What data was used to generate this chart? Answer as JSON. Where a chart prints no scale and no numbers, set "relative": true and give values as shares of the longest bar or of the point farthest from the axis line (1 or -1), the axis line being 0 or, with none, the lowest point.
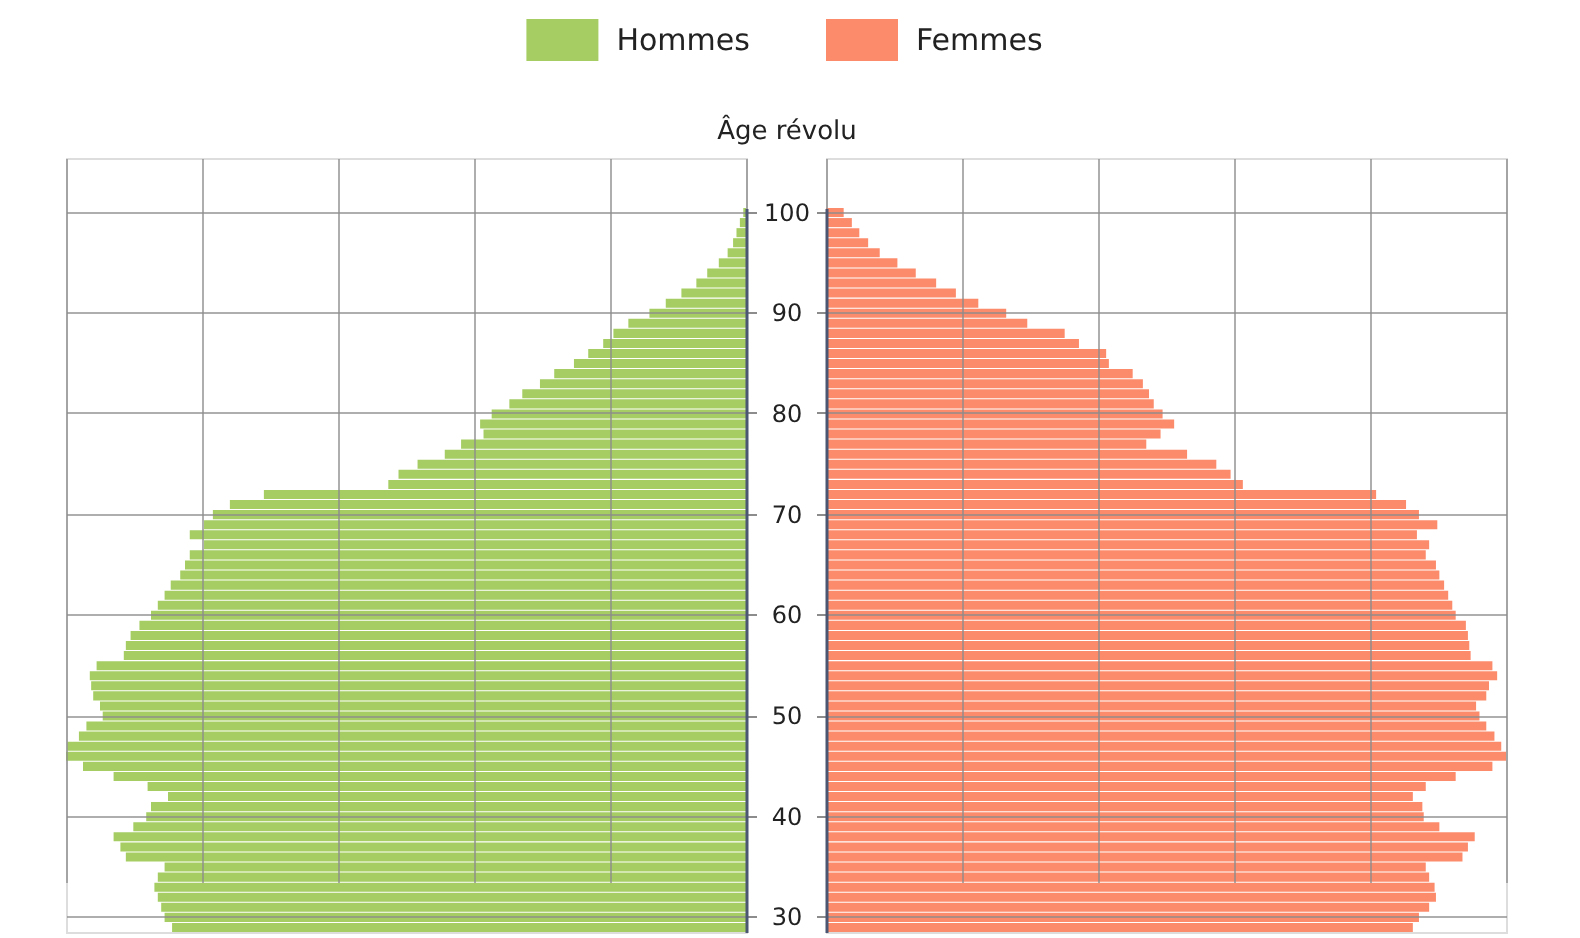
{
  "chart_data": [
    {
      "type": "bar",
      "orientation": "horizontal",
      "relative": true,
      "ylabel": "Âge révolu",
      "grid": true,
      "legend": "top right",
      "categories": [
        "100",
        null,
        null,
        null,
        null,
        null,
        null,
        null,
        null,
        null,
        "90",
        null,
        null,
        null,
        null,
        null,
        null,
        null,
        null,
        null,
        "80",
        null,
        null,
        null,
        null,
        null,
        null,
        null,
        null,
        null,
        "70",
        null,
        null,
        null,
        null,
        null,
        null,
        null,
        null,
        null,
        "60",
        null,
        null,
        null,
        null,
        null,
        null,
        null,
        null,
        null,
        "50",
        null,
        null,
        null,
        null,
        null,
        null,
        null,
        null,
        null,
        "40",
        null,
        null,
        null,
        null,
        null,
        null,
        null,
        null,
        null,
        "30",
        null
      ],
      "series": [
        {
          "name": "Hommes",
          "color": "#a5cd63",
          "values": [
            -0.004,
            -0.009,
            -0.014,
            -0.019,
            -0.027,
            -0.04,
            -0.057,
            -0.073,
            -0.095,
            -0.118,
            -0.142,
            -0.173,
            -0.195,
            -0.21,
            -0.232,
            -0.253,
            -0.282,
            -0.303,
            -0.329,
            -0.348,
            -0.374,
            -0.391,
            -0.386,
            -0.419,
            -0.443,
            -0.483,
            -0.511,
            -0.526,
            -0.709,
            -0.759,
            -0.784,
            -0.797,
            -0.818,
            -0.797,
            -0.818,
            -0.825,
            -0.832,
            -0.846,
            -0.855,
            -0.865,
            -0.875,
            -0.892,
            -0.905,
            -0.912,
            -0.915,
            -0.955,
            -0.965,
            -0.963,
            -0.96,
            -0.95,
            -0.946,
            -0.97,
            -0.981,
            -0.998,
            -1,
            -0.975,
            -0.93,
            -0.88,
            -0.85,
            -0.875,
            -0.882,
            -0.901,
            -0.93,
            -0.92,
            -0.912,
            -0.855,
            -0.865,
            -0.87,
            -0.865,
            -0.86,
            -0.855,
            -0.844
          ]
        }
      ]
    },
    {
      "type": "bar",
      "orientation": "horizontal",
      "relative": true,
      "grid": true,
      "legend": "top left",
      "tick_labels": false,
      "categories": [
        "100",
        null,
        null,
        null,
        null,
        null,
        null,
        null,
        null,
        null,
        "90",
        null,
        null,
        null,
        null,
        null,
        null,
        null,
        null,
        null,
        "80",
        null,
        null,
        null,
        null,
        null,
        null,
        null,
        null,
        null,
        "70",
        null,
        null,
        null,
        null,
        null,
        null,
        null,
        null,
        null,
        "60",
        null,
        null,
        null,
        null,
        null,
        null,
        null,
        null,
        null,
        "50",
        null,
        null,
        null,
        null,
        null,
        null,
        null,
        null,
        null,
        "40",
        null,
        null,
        null,
        null,
        null,
        null,
        null,
        null,
        null,
        "30",
        null
      ],
      "series": [
        {
          "name": "Femmes",
          "color": "#fc8b6b",
          "values": [
            0.026,
            0.038,
            0.049,
            0.062,
            0.079,
            0.105,
            0.132,
            0.162,
            0.191,
            0.224,
            0.265,
            0.296,
            0.351,
            0.372,
            0.412,
            0.416,
            0.451,
            0.466,
            0.475,
            0.482,
            0.495,
            0.512,
            0.492,
            0.471,
            0.531,
            0.574,
            0.595,
            0.613,
            0.809,
            0.853,
            0.872,
            0.899,
            0.869,
            0.887,
            0.882,
            0.897,
            0.902,
            0.909,
            0.915,
            0.921,
            0.926,
            0.941,
            0.944,
            0.946,
            0.948,
            0.98,
            0.987,
            0.975,
            0.971,
            0.956,
            0.961,
            0.971,
            0.983,
            0.993,
            1,
            0.98,
            0.926,
            0.882,
            0.863,
            0.877,
            0.879,
            0.902,
            0.954,
            0.944,
            0.936,
            0.882,
            0.887,
            0.895,
            0.897,
            0.887,
            0.872,
            0.863
          ]
        }
      ]
    }
  ]
}
